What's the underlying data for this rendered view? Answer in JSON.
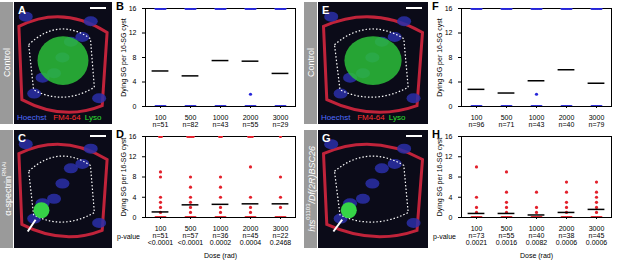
{
  "chart_data": [
    {
      "type": "scatter",
      "panel": "B",
      "color": "#2626d9",
      "mean_color": "#000000",
      "categories": [
        100,
        500,
        1000,
        2000,
        3000
      ],
      "n_labels": [
        "n=51",
        "n=82",
        "n=43",
        "n=55",
        "n=29"
      ],
      "points": [
        [
          0,
          0,
          0,
          0,
          0,
          0,
          16,
          16,
          16,
          16,
          16,
          16
        ],
        [
          0,
          0,
          0,
          0,
          0,
          0,
          16,
          16,
          16,
          16,
          16,
          16
        ],
        [
          0,
          0,
          0,
          0,
          0,
          0,
          16,
          16,
          16,
          16,
          16,
          16
        ],
        [
          0,
          0,
          0,
          0,
          0,
          0,
          2,
          16,
          16,
          16,
          16,
          16,
          16
        ],
        [
          0,
          0,
          0,
          0,
          0,
          0,
          16,
          16,
          16,
          16,
          16,
          16
        ]
      ],
      "means": [
        5.8,
        5.0,
        7.5,
        7.4,
        5.4
      ],
      "ylabel": "Dying SG per 16-SG cyst",
      "ylim": [
        0,
        16
      ],
      "yticks": [
        0,
        4,
        8,
        12,
        16
      ]
    },
    {
      "type": "scatter",
      "panel": "D",
      "color": "#e3202b",
      "mean_color": "#000000",
      "categories": [
        100,
        500,
        1000,
        2000,
        3000
      ],
      "n_labels": [
        "n=51",
        "n=57",
        "n=36",
        "n=45",
        "n=22"
      ],
      "points": [
        [
          0,
          0,
          0,
          0,
          0,
          0,
          1,
          2,
          3,
          4,
          8,
          9,
          16,
          16
        ],
        [
          0,
          0,
          0,
          0,
          0,
          0,
          1,
          2,
          3,
          4,
          6,
          8,
          16,
          16,
          16,
          16
        ],
        [
          0,
          0,
          0,
          0,
          0,
          0,
          1,
          2,
          4,
          6,
          8,
          16,
          16
        ],
        [
          0,
          0,
          0,
          0,
          0,
          0,
          1,
          2,
          4,
          10,
          16,
          16,
          16
        ],
        [
          0,
          0,
          0,
          0,
          0,
          0,
          2,
          4,
          8,
          16
        ]
      ],
      "means": [
        1.1,
        2.5,
        2.6,
        2.7,
        2.7
      ],
      "p_label": "p-value",
      "p_values": [
        "<0.0001",
        "<0.0001",
        "0.0002",
        "0.0004",
        "0.2468"
      ],
      "xlabel": "Dose (rad)",
      "ylabel": "Dying SG per 16-SG cyst",
      "ylim": [
        0,
        16
      ],
      "yticks": [
        0,
        4,
        8,
        12,
        16
      ]
    },
    {
      "type": "scatter",
      "panel": "F",
      "color": "#2626d9",
      "mean_color": "#000000",
      "categories": [
        100,
        500,
        1000,
        2000,
        3000
      ],
      "n_labels": [
        "n=96",
        "n=71",
        "n=43",
        "n=40",
        "n=79"
      ],
      "points": [
        [
          0,
          0,
          0,
          0,
          0,
          0,
          16,
          16,
          16,
          16,
          16,
          16
        ],
        [
          0,
          0,
          0,
          0,
          0,
          0,
          16,
          16,
          16,
          16,
          16,
          16
        ],
        [
          0,
          0,
          0,
          0,
          0,
          0,
          2,
          16,
          16,
          16,
          16,
          16,
          16
        ],
        [
          0,
          0,
          0,
          0,
          0,
          0,
          16,
          16,
          16,
          16,
          16,
          16
        ],
        [
          0,
          0,
          0,
          0,
          0,
          0,
          16,
          16,
          16,
          16,
          16,
          16
        ]
      ],
      "means": [
        2.8,
        2.2,
        4.2,
        6.0,
        3.8
      ],
      "ylabel": "Dying SG per 16-SG cyst",
      "ylim": [
        0,
        16
      ],
      "yticks": [
        0,
        4,
        8,
        12,
        16
      ]
    },
    {
      "type": "scatter",
      "panel": "H",
      "color": "#e3202b",
      "mean_color": "#000000",
      "categories": [
        100,
        500,
        1000,
        2000,
        3000
      ],
      "n_labels": [
        "n=73",
        "n=55",
        "n=40",
        "n=38",
        "n=45"
      ],
      "points": [
        [
          0,
          0,
          0,
          0,
          0,
          0,
          1,
          2,
          4,
          10
        ],
        [
          0,
          0,
          0,
          0,
          0,
          0,
          1,
          2,
          3,
          5,
          9
        ],
        [
          0,
          0,
          0,
          0,
          0,
          0,
          1,
          2,
          5
        ],
        [
          0,
          0,
          0,
          0,
          0,
          0,
          1,
          2,
          3,
          5,
          7
        ],
        [
          0,
          0,
          0,
          0,
          0,
          0,
          1,
          2,
          3,
          4,
          5,
          7
        ]
      ],
      "means": [
        0.8,
        0.8,
        0.5,
        1.0,
        1.6
      ],
      "p_label": "p-value",
      "p_values": [
        "0.0021",
        "0.0016",
        "0.0082",
        "0.0006",
        "0.0006"
      ],
      "xlabel": "Dose (rad)",
      "ylabel": "Dying SG per 16-SG cyst",
      "ylim": [
        0,
        16
      ],
      "yticks": [
        0,
        4,
        8,
        12,
        16
      ]
    }
  ],
  "image_panels": [
    {
      "panel": "A",
      "row_label": [
        {
          "text": "Control"
        }
      ],
      "stains": [
        {
          "text": "Hoechst",
          "color": "#4f6bff"
        },
        {
          "text": "FM4-64",
          "color": "#ff3030"
        },
        {
          "text": "Lyso",
          "color": "#30e030"
        }
      ]
    },
    {
      "panel": "C",
      "row_label": [
        {
          "text": "α-spectrin"
        },
        {
          "text": "RNAi",
          "sup": true
        }
      ],
      "stains": []
    },
    {
      "panel": "E",
      "row_label": [
        {
          "text": "Control"
        }
      ],
      "stains": [
        {
          "text": "Hoechst",
          "color": "#4f6bff"
        },
        {
          "text": "FM4-64",
          "color": "#ff3030"
        },
        {
          "text": "Lyso",
          "color": "#30e030"
        }
      ]
    },
    {
      "panel": "G",
      "row_label": [
        {
          "text": "hts"
        },
        {
          "text": "01103",
          "sup": true
        },
        {
          "text": "/Df(2R)BSC26"
        }
      ],
      "stains": []
    }
  ]
}
